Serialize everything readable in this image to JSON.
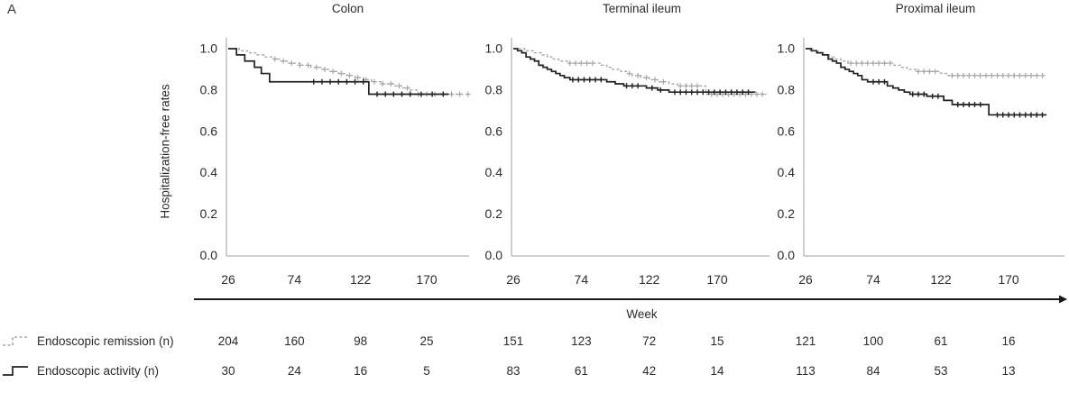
{
  "figure_label": "A",
  "ylabel": "Hospitalization-free rates",
  "xlabel": "Week",
  "colors": {
    "remission": "#a7a7a7",
    "activity": "#222222",
    "axis": "#b5b5b5",
    "week_axis": "#1a1a1a",
    "text": "#2b2b2b"
  },
  "legend": [
    {
      "key": "remission",
      "label": "Endoscopic remission (n)",
      "style": "dashed-gray-step"
    },
    {
      "key": "activity",
      "label": "Endoscopic activity (n)",
      "style": "solid-black-step"
    }
  ],
  "axes": {
    "yticks": [
      "1.0",
      "0.8",
      "0.6",
      "0.4",
      "0.2",
      "0.0"
    ],
    "ytick_values": [
      1.0,
      0.8,
      0.6,
      0.4,
      0.2,
      0.0
    ],
    "xticks": [
      26,
      74,
      122,
      170
    ],
    "ylim": [
      0.0,
      1.0
    ],
    "xlim": [
      26,
      205
    ],
    "grid": false
  },
  "chart_data": [
    {
      "type": "line",
      "title": "Colon",
      "xlabel": "Week",
      "ylabel": "Hospitalization-free rates",
      "series": [
        {
          "name": "Endoscopic remission",
          "style": "dashed",
          "color_key": "remission",
          "steps": [
            [
              26,
              1.0
            ],
            [
              34,
              0.99
            ],
            [
              40,
              0.98
            ],
            [
              46,
              0.97
            ],
            [
              52,
              0.96
            ],
            [
              58,
              0.95
            ],
            [
              64,
              0.94
            ],
            [
              70,
              0.93
            ],
            [
              78,
              0.92
            ],
            [
              86,
              0.91
            ],
            [
              94,
              0.9
            ],
            [
              100,
              0.89
            ],
            [
              106,
              0.88
            ],
            [
              112,
              0.87
            ],
            [
              118,
              0.86
            ],
            [
              124,
              0.85
            ],
            [
              130,
              0.84
            ],
            [
              138,
              0.83
            ],
            [
              146,
              0.82
            ],
            [
              152,
              0.81
            ],
            [
              158,
              0.8
            ],
            [
              163,
              0.78
            ]
          ],
          "end_week": 203,
          "censor_weeks": [
            60,
            66,
            72,
            78,
            84,
            90,
            96,
            102,
            108,
            114,
            120,
            126,
            132,
            138,
            144,
            150,
            156,
            164,
            170,
            176,
            182,
            188,
            194,
            200
          ],
          "at_risk": [
            204,
            160,
            98,
            25
          ]
        },
        {
          "name": "Endoscopic activity",
          "style": "solid",
          "color_key": "activity",
          "steps": [
            [
              26,
              1.0
            ],
            [
              32,
              0.97
            ],
            [
              38,
              0.94
            ],
            [
              45,
              0.91
            ],
            [
              50,
              0.88
            ],
            [
              56,
              0.84
            ],
            [
              128,
              0.78
            ]
          ],
          "end_week": 186,
          "censor_weeks": [
            88,
            94,
            100,
            106,
            112,
            118,
            124,
            134,
            140,
            146,
            152,
            158,
            166,
            174,
            182
          ],
          "at_risk": [
            30,
            24,
            16,
            5
          ]
        }
      ]
    },
    {
      "type": "line",
      "title": "Terminal ileum",
      "xlabel": "Week",
      "ylabel": "Hospitalization-free rates",
      "series": [
        {
          "name": "Endoscopic remission",
          "style": "dashed",
          "color_key": "remission",
          "steps": [
            [
              26,
              1.0
            ],
            [
              34,
              0.99
            ],
            [
              40,
              0.98
            ],
            [
              46,
              0.97
            ],
            [
              50,
              0.96
            ],
            [
              54,
              0.95
            ],
            [
              58,
              0.94
            ],
            [
              64,
              0.93
            ],
            [
              88,
              0.92
            ],
            [
              92,
              0.91
            ],
            [
              96,
              0.9
            ],
            [
              102,
              0.89
            ],
            [
              106,
              0.88
            ],
            [
              110,
              0.87
            ],
            [
              116,
              0.86
            ],
            [
              122,
              0.85
            ],
            [
              128,
              0.84
            ],
            [
              136,
              0.83
            ],
            [
              142,
              0.82
            ],
            [
              162,
              0.78
            ]
          ],
          "end_week": 205,
          "censor_weeks": [
            66,
            70,
            74,
            78,
            82,
            108,
            114,
            120,
            126,
            132,
            144,
            148,
            152,
            156,
            166,
            170,
            174,
            178,
            182,
            186,
            190,
            194,
            198,
            202
          ],
          "at_risk": [
            151,
            123,
            72,
            15
          ]
        },
        {
          "name": "Endoscopic activity",
          "style": "solid",
          "color_key": "activity",
          "steps": [
            [
              26,
              1.0
            ],
            [
              29,
              0.99
            ],
            [
              32,
              0.98
            ],
            [
              35,
              0.96
            ],
            [
              38,
              0.95
            ],
            [
              41,
              0.94
            ],
            [
              44,
              0.92
            ],
            [
              47,
              0.91
            ],
            [
              50,
              0.9
            ],
            [
              53,
              0.89
            ],
            [
              56,
              0.88
            ],
            [
              59,
              0.87
            ],
            [
              62,
              0.86
            ],
            [
              66,
              0.85
            ],
            [
              92,
              0.84
            ],
            [
              98,
              0.83
            ],
            [
              104,
              0.82
            ],
            [
              120,
              0.81
            ],
            [
              128,
              0.8
            ],
            [
              136,
              0.79
            ]
          ],
          "end_week": 197,
          "censor_weeks": [
            68,
            72,
            76,
            80,
            84,
            88,
            106,
            110,
            114,
            124,
            130,
            140,
            144,
            148,
            152,
            156,
            160,
            164,
            168,
            172,
            176,
            180,
            184,
            188,
            192
          ],
          "at_risk": [
            83,
            61,
            42,
            14
          ]
        }
      ]
    },
    {
      "type": "line",
      "title": "Proximal ileum",
      "xlabel": "Week",
      "ylabel": "Hospitalization-free rates",
      "series": [
        {
          "name": "Endoscopic remission",
          "style": "dashed",
          "color_key": "remission",
          "steps": [
            [
              26,
              1.0
            ],
            [
              31,
              0.99
            ],
            [
              35,
              0.98
            ],
            [
              39,
              0.97
            ],
            [
              43,
              0.96
            ],
            [
              47,
              0.95
            ],
            [
              51,
              0.94
            ],
            [
              56,
              0.93
            ],
            [
              88,
              0.92
            ],
            [
              93,
              0.91
            ],
            [
              98,
              0.9
            ],
            [
              104,
              0.89
            ],
            [
              122,
              0.88
            ],
            [
              127,
              0.87
            ]
          ],
          "end_week": 197,
          "censor_weeks": [
            58,
            62,
            66,
            70,
            74,
            78,
            82,
            86,
            106,
            110,
            114,
            118,
            130,
            134,
            138,
            142,
            146,
            150,
            154,
            158,
            162,
            166,
            170,
            174,
            178,
            182,
            186,
            190,
            194
          ],
          "at_risk": [
            121,
            100,
            61,
            16
          ]
        },
        {
          "name": "Endoscopic activity",
          "style": "solid",
          "color_key": "activity",
          "steps": [
            [
              26,
              1.0
            ],
            [
              30,
              0.99
            ],
            [
              34,
              0.98
            ],
            [
              38,
              0.97
            ],
            [
              42,
              0.95
            ],
            [
              45,
              0.94
            ],
            [
              48,
              0.93
            ],
            [
              51,
              0.91
            ],
            [
              54,
              0.9
            ],
            [
              57,
              0.89
            ],
            [
              60,
              0.88
            ],
            [
              63,
              0.87
            ],
            [
              66,
              0.85
            ],
            [
              70,
              0.84
            ],
            [
              84,
              0.82
            ],
            [
              88,
              0.81
            ],
            [
              92,
              0.8
            ],
            [
              96,
              0.79
            ],
            [
              100,
              0.78
            ],
            [
              112,
              0.77
            ],
            [
              124,
              0.75
            ],
            [
              130,
              0.73
            ],
            [
              156,
              0.68
            ]
          ],
          "end_week": 197,
          "censor_weeks": [
            74,
            78,
            82,
            102,
            106,
            110,
            116,
            120,
            134,
            138,
            142,
            146,
            150,
            162,
            166,
            170,
            174,
            178,
            182,
            186,
            190,
            194
          ],
          "at_risk": [
            113,
            84,
            53,
            13
          ]
        }
      ]
    }
  ]
}
